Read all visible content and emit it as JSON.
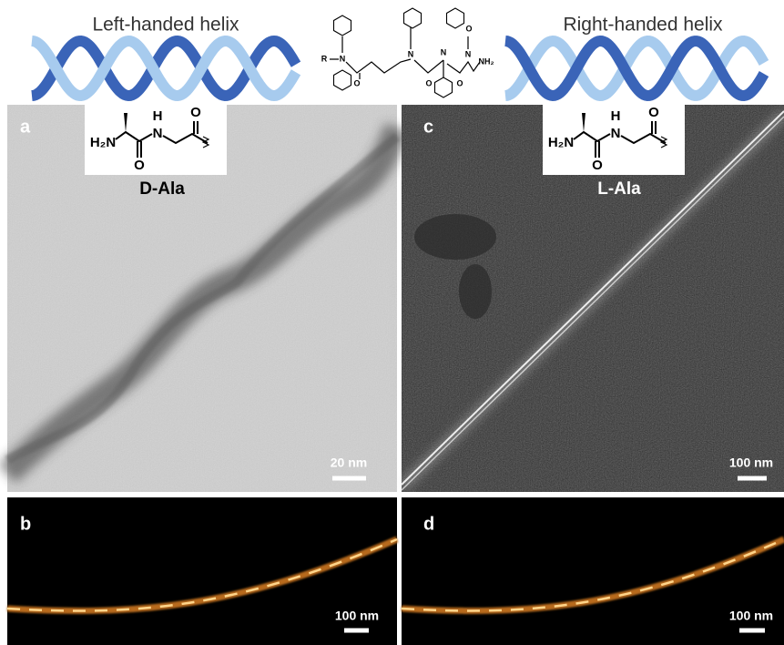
{
  "header": {
    "left_label": "Left-handed helix",
    "right_label": "Right-handed helix",
    "peptoid_atoms": [
      "R",
      "N",
      "O",
      "N",
      "O",
      "N",
      "O",
      "N",
      "O",
      "NH₂"
    ]
  },
  "panels": [
    {
      "label": "a",
      "residue": "D-Ala",
      "structure_atoms": [
        "H₂N",
        "H",
        "N",
        "O",
        "O"
      ],
      "scale_bar": "20 nm"
    },
    {
      "label": "b",
      "scale_bar": "100 nm"
    },
    {
      "label": "c",
      "residue": "L-Ala",
      "structure_atoms": [
        "H₂N",
        "H",
        "N",
        "O",
        "O"
      ],
      "scale_bar": "100 nm"
    },
    {
      "label": "d",
      "scale_bar": "100 nm"
    }
  ]
}
